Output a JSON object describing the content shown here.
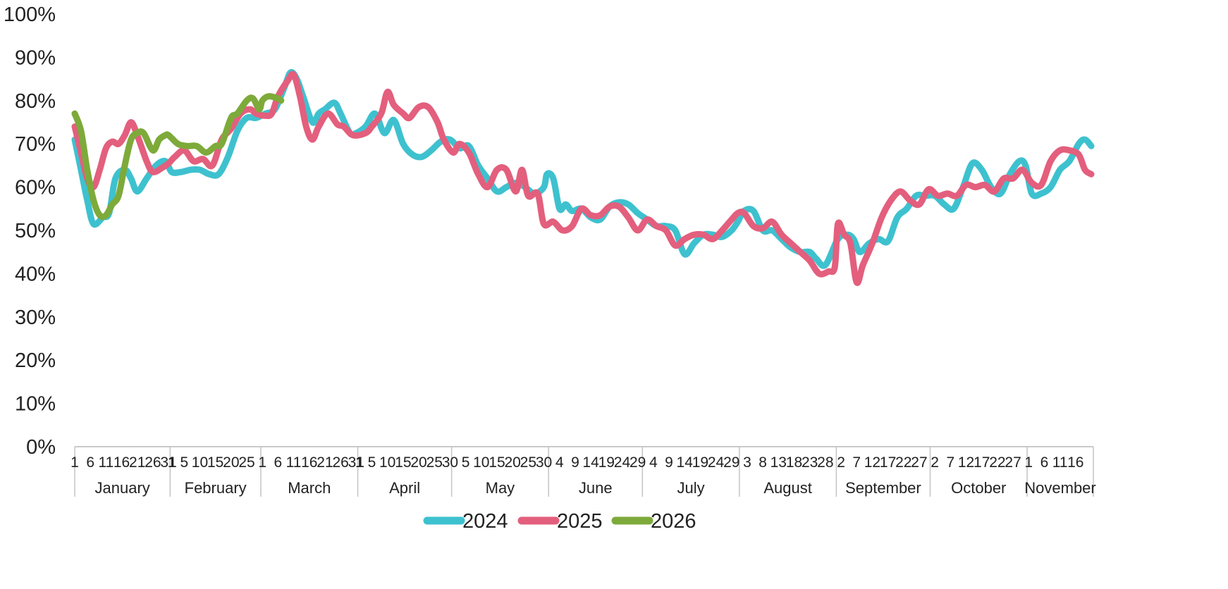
{
  "chart_data": {
    "type": "line",
    "title": "",
    "xlabel": "",
    "ylabel": "",
    "ylim": [
      0,
      100
    ],
    "y_ticks": [
      "0%",
      "10%",
      "20%",
      "30%",
      "40%",
      "50%",
      "60%",
      "70%",
      "80%",
      "90%",
      "100%"
    ],
    "grid": false,
    "legend_position": "bottom",
    "months": [
      {
        "name": "January",
        "days": 31,
        "tick_days": [
          1,
          6,
          11,
          16,
          21,
          26,
          31
        ]
      },
      {
        "name": "February",
        "days": 29,
        "tick_days": [
          1,
          5,
          10,
          15,
          20,
          25
        ]
      },
      {
        "name": "March",
        "days": 31,
        "tick_days": [
          1,
          6,
          11,
          16,
          21,
          26,
          31
        ]
      },
      {
        "name": "April",
        "days": 30,
        "tick_days": [
          1,
          5,
          10,
          15,
          20,
          25,
          30
        ]
      },
      {
        "name": "May",
        "days": 31,
        "tick_days": [
          5,
          10,
          15,
          20,
          25,
          30
        ]
      },
      {
        "name": "June",
        "days": 30,
        "tick_days": [
          4,
          9,
          14,
          19,
          24,
          29
        ]
      },
      {
        "name": "July",
        "days": 31,
        "tick_days": [
          4,
          9,
          14,
          19,
          24,
          29
        ]
      },
      {
        "name": "August",
        "days": 31,
        "tick_days": [
          3,
          8,
          13,
          18,
          23,
          28
        ]
      },
      {
        "name": "September",
        "days": 30,
        "tick_days": [
          2,
          7,
          12,
          17,
          22,
          27
        ]
      },
      {
        "name": "October",
        "days": 31,
        "tick_days": [
          2,
          7,
          12,
          17,
          22,
          27
        ]
      },
      {
        "name": "November",
        "days": 21,
        "tick_days": [
          1,
          6,
          11,
          16
        ]
      }
    ],
    "series": [
      {
        "name": "2024",
        "color": "#3ec1cf",
        "points": [
          [
            "Jan 1",
            71
          ],
          [
            "Jan 3",
            64
          ],
          [
            "Jan 5",
            57
          ],
          [
            "Jan 7",
            51.5
          ],
          [
            "Jan 10",
            53
          ],
          [
            "Jan 12",
            54
          ],
          [
            "Jan 14",
            62
          ],
          [
            "Jan 17",
            64
          ],
          [
            "Jan 19",
            62
          ],
          [
            "Jan 21",
            59
          ],
          [
            "Jan 24",
            62
          ],
          [
            "Jan 27",
            65
          ],
          [
            "Jan 30",
            66
          ],
          [
            "Feb 1",
            63.5
          ],
          [
            "Feb 4",
            63.5
          ],
          [
            "Feb 7",
            64
          ],
          [
            "Feb 10",
            64
          ],
          [
            "Feb 13",
            63
          ],
          [
            "Feb 16",
            63
          ],
          [
            "Feb 19",
            67
          ],
          [
            "Feb 22",
            73
          ],
          [
            "Feb 25",
            76
          ],
          [
            "Feb 28",
            76
          ],
          [
            "Mar 2",
            77
          ],
          [
            "Mar 5",
            78
          ],
          [
            "Mar 8",
            83
          ],
          [
            "Mar 10",
            86.5
          ],
          [
            "Mar 12",
            85
          ],
          [
            "Mar 14",
            81
          ],
          [
            "Mar 17",
            75
          ],
          [
            "Mar 19",
            77
          ],
          [
            "Mar 21",
            78
          ],
          [
            "Mar 24",
            79.5
          ],
          [
            "Mar 26",
            77
          ],
          [
            "Mar 29",
            72.5
          ],
          [
            "Mar 31",
            72.5
          ],
          [
            "Apr 3",
            74
          ],
          [
            "Apr 6",
            77
          ],
          [
            "Apr 9",
            72.5
          ],
          [
            "Apr 12",
            75.5
          ],
          [
            "Apr 15",
            70
          ],
          [
            "Apr 18",
            67.5
          ],
          [
            "Apr 21",
            67
          ],
          [
            "Apr 24",
            68.5
          ],
          [
            "Apr 27",
            70.5
          ],
          [
            "Apr 30",
            71
          ],
          [
            "May 3",
            69
          ],
          [
            "May 6",
            69.5
          ],
          [
            "May 9",
            65
          ],
          [
            "May 12",
            62
          ],
          [
            "May 15",
            59
          ],
          [
            "May 18",
            60
          ],
          [
            "May 21",
            61
          ],
          [
            "May 24",
            60
          ],
          [
            "May 27",
            58.5
          ],
          [
            "May 30",
            60
          ],
          [
            "May 31",
            63
          ],
          [
            "Jun 2",
            62
          ],
          [
            "Jun 4",
            55
          ],
          [
            "Jun 6",
            56
          ],
          [
            "Jun 8",
            54.5
          ],
          [
            "Jun 11",
            55
          ],
          [
            "Jun 14",
            53
          ],
          [
            "Jun 17",
            52.5
          ],
          [
            "Jun 20",
            55.5
          ],
          [
            "Jun 23",
            56.5
          ],
          [
            "Jun 26",
            56
          ],
          [
            "Jun 29",
            54
          ],
          [
            "Jul 2",
            52.5
          ],
          [
            "Jul 5",
            51
          ],
          [
            "Jul 8",
            51
          ],
          [
            "Jul 11",
            50
          ],
          [
            "Jul 14",
            44.5
          ],
          [
            "Jul 17",
            47
          ],
          [
            "Jul 20",
            49
          ],
          [
            "Jul 23",
            49
          ],
          [
            "Jul 26",
            48.5
          ],
          [
            "Jul 29",
            50
          ],
          [
            "Jul 31",
            52
          ],
          [
            "Aug 2",
            54.5
          ],
          [
            "Aug 5",
            54.5
          ],
          [
            "Aug 8",
            50
          ],
          [
            "Aug 11",
            50
          ],
          [
            "Aug 14",
            48
          ],
          [
            "Aug 17",
            46
          ],
          [
            "Aug 20",
            45
          ],
          [
            "Aug 23",
            45
          ],
          [
            "Aug 25",
            43.5
          ],
          [
            "Aug 28",
            42
          ],
          [
            "Sep 1",
            48
          ],
          [
            "Sep 4",
            49
          ],
          [
            "Sep 6",
            48
          ],
          [
            "Sep 8",
            45
          ],
          [
            "Sep 11",
            47
          ],
          [
            "Sep 14",
            48
          ],
          [
            "Sep 17",
            47.5
          ],
          [
            "Sep 20",
            53
          ],
          [
            "Sep 23",
            55
          ],
          [
            "Sep 26",
            58
          ],
          [
            "Sep 29",
            58
          ],
          [
            "Oct 2",
            58
          ],
          [
            "Oct 5",
            56
          ],
          [
            "Oct 8",
            55
          ],
          [
            "Oct 11",
            60
          ],
          [
            "Oct 14",
            65.5
          ],
          [
            "Oct 17",
            64
          ],
          [
            "Oct 20",
            60
          ],
          [
            "Oct 23",
            58.5
          ],
          [
            "Oct 26",
            63
          ],
          [
            "Oct 29",
            66
          ],
          [
            "Oct 31",
            65
          ],
          [
            "Nov 2",
            58.5
          ],
          [
            "Nov 5",
            58.5
          ],
          [
            "Nov 8",
            60
          ],
          [
            "Nov 11",
            64
          ],
          [
            "Nov 14",
            66
          ],
          [
            "Nov 17",
            70
          ],
          [
            "Nov 19",
            71
          ],
          [
            "Nov 21",
            69.5
          ]
        ]
      },
      {
        "name": "2025",
        "color": "#e35f7d",
        "points": [
          [
            "Jan 1",
            74
          ],
          [
            "Jan 3",
            68
          ],
          [
            "Jan 5",
            62
          ],
          [
            "Jan 7",
            60
          ],
          [
            "Jan 9",
            64
          ],
          [
            "Jan 11",
            69
          ],
          [
            "Jan 13",
            70.5
          ],
          [
            "Jan 15",
            70
          ],
          [
            "Jan 17",
            72
          ],
          [
            "Jan 19",
            75
          ],
          [
            "Jan 21",
            72
          ],
          [
            "Jan 24",
            66
          ],
          [
            "Jan 26",
            63.5
          ],
          [
            "Jan 29",
            64.5
          ],
          [
            "Jan 31",
            65.5
          ],
          [
            "Feb 2",
            67
          ],
          [
            "Feb 5",
            68.5
          ],
          [
            "Feb 8",
            66
          ],
          [
            "Feb 11",
            66.5
          ],
          [
            "Feb 14",
            65
          ],
          [
            "Feb 17",
            71
          ],
          [
            "Feb 20",
            73.5
          ],
          [
            "Feb 23",
            77
          ],
          [
            "Feb 26",
            78
          ],
          [
            "Feb 28",
            77
          ],
          [
            "Mar 2",
            76.5
          ],
          [
            "Mar 4",
            77
          ],
          [
            "Mar 6",
            81
          ],
          [
            "Mar 9",
            84.5
          ],
          [
            "Mar 11",
            86
          ],
          [
            "Mar 13",
            81
          ],
          [
            "Mar 15",
            74
          ],
          [
            "Mar 17",
            71
          ],
          [
            "Mar 19",
            74
          ],
          [
            "Mar 22",
            77
          ],
          [
            "Mar 25",
            74.5
          ],
          [
            "Mar 27",
            74
          ],
          [
            "Mar 30",
            72
          ],
          [
            "Apr 3",
            72.5
          ],
          [
            "Apr 5",
            74
          ],
          [
            "Apr 8",
            77
          ],
          [
            "Apr 10",
            82
          ],
          [
            "Apr 12",
            79
          ],
          [
            "Apr 15",
            77
          ],
          [
            "Apr 17",
            76
          ],
          [
            "Apr 20",
            78.5
          ],
          [
            "Apr 23",
            78.5
          ],
          [
            "Apr 26",
            75
          ],
          [
            "Apr 28",
            71
          ],
          [
            "May 1",
            68
          ],
          [
            "May 3",
            70
          ],
          [
            "May 6",
            68
          ],
          [
            "May 9",
            63
          ],
          [
            "May 12",
            60
          ],
          [
            "May 15",
            64
          ],
          [
            "May 18",
            64
          ],
          [
            "May 21",
            59
          ],
          [
            "May 23",
            64
          ],
          [
            "May 25",
            58
          ],
          [
            "May 28",
            58.5
          ],
          [
            "May 30",
            51.5
          ],
          [
            "Jun 2",
            52
          ],
          [
            "Jun 5",
            50
          ],
          [
            "Jun 8",
            51
          ],
          [
            "Jun 11",
            55
          ],
          [
            "Jun 14",
            53.5
          ],
          [
            "Jun 17",
            53.5
          ],
          [
            "Jun 20",
            55.5
          ],
          [
            "Jun 23",
            55.5
          ],
          [
            "Jun 26",
            53
          ],
          [
            "Jun 29",
            50
          ],
          [
            "Jul 2",
            52.5
          ],
          [
            "Jul 5",
            51
          ],
          [
            "Jul 8",
            50
          ],
          [
            "Jul 11",
            46.5
          ],
          [
            "Jul 14",
            48
          ],
          [
            "Jul 17",
            49
          ],
          [
            "Jul 20",
            49
          ],
          [
            "Jul 23",
            48
          ],
          [
            "Jul 26",
            50
          ],
          [
            "Jul 29",
            52.5
          ],
          [
            "Jul 31",
            54
          ],
          [
            "Aug 2",
            54
          ],
          [
            "Aug 5",
            51
          ],
          [
            "Aug 8",
            50.5
          ],
          [
            "Aug 11",
            52
          ],
          [
            "Aug 14",
            49
          ],
          [
            "Aug 17",
            47
          ],
          [
            "Aug 20",
            45
          ],
          [
            "Aug 23",
            43
          ],
          [
            "Aug 26",
            40
          ],
          [
            "Aug 29",
            40.5
          ],
          [
            "Aug 31",
            41.5
          ],
          [
            "Sep 1",
            51.5
          ],
          [
            "Sep 3",
            49
          ],
          [
            "Sep 5",
            47
          ],
          [
            "Sep 7",
            38
          ],
          [
            "Sep 9",
            42
          ],
          [
            "Sep 12",
            47
          ],
          [
            "Sep 15",
            53
          ],
          [
            "Sep 18",
            57
          ],
          [
            "Sep 21",
            59
          ],
          [
            "Sep 24",
            57
          ],
          [
            "Sep 27",
            56
          ],
          [
            "Sep 30",
            59.5
          ],
          [
            "Oct 3",
            58
          ],
          [
            "Oct 6",
            58.5
          ],
          [
            "Oct 9",
            58
          ],
          [
            "Oct 12",
            60.5
          ],
          [
            "Oct 15",
            60
          ],
          [
            "Oct 18",
            60.5
          ],
          [
            "Oct 21",
            59
          ],
          [
            "Oct 24",
            62
          ],
          [
            "Oct 27",
            62
          ],
          [
            "Oct 30",
            64
          ],
          [
            "Nov 2",
            61
          ],
          [
            "Nov 5",
            60.5
          ],
          [
            "Nov 8",
            66
          ],
          [
            "Nov 11",
            68.5
          ],
          [
            "Nov 14",
            68.5
          ],
          [
            "Nov 17",
            67.5
          ],
          [
            "Nov 19",
            64
          ],
          [
            "Nov 21",
            63
          ]
        ]
      },
      {
        "name": "2026",
        "color": "#7daa3a",
        "points": [
          [
            "Jan 1",
            77
          ],
          [
            "Jan 3",
            73
          ],
          [
            "Jan 5",
            64
          ],
          [
            "Jan 7",
            57
          ],
          [
            "Jan 9",
            53.5
          ],
          [
            "Jan 11",
            53.5
          ],
          [
            "Jan 13",
            56
          ],
          [
            "Jan 15",
            58
          ],
          [
            "Jan 17",
            65
          ],
          [
            "Jan 19",
            71
          ],
          [
            "Jan 21",
            72.5
          ],
          [
            "Jan 23",
            72.5
          ],
          [
            "Jan 26",
            68.5
          ],
          [
            "Jan 28",
            71
          ],
          [
            "Jan 30",
            72
          ],
          [
            "Jan 31",
            72
          ],
          [
            "Feb 3",
            70
          ],
          [
            "Feb 6",
            69.5
          ],
          [
            "Feb 9",
            69.5
          ],
          [
            "Feb 12",
            68
          ],
          [
            "Feb 15",
            69.5
          ],
          [
            "Feb 17",
            70
          ],
          [
            "Feb 20",
            76
          ],
          [
            "Feb 22",
            77
          ],
          [
            "Feb 25",
            80
          ],
          [
            "Feb 27",
            80.5
          ],
          [
            "Feb 29",
            78
          ],
          [
            "Mar 1",
            80
          ],
          [
            "Mar 3",
            81
          ],
          [
            "Mar 6",
            80.5
          ],
          [
            "Mar 7",
            80
          ]
        ]
      }
    ]
  }
}
